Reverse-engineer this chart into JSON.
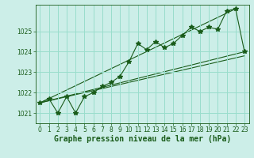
{
  "xlabel": "Graphe pression niveau de la mer (hPa)",
  "background_color": "#cceee8",
  "grid_color": "#99ddcc",
  "line_color": "#1a5c1a",
  "hours": [
    0,
    1,
    2,
    3,
    4,
    5,
    6,
    7,
    8,
    9,
    10,
    11,
    12,
    13,
    14,
    15,
    16,
    17,
    18,
    19,
    20,
    21,
    22,
    23
  ],
  "pressure": [
    1021.5,
    1021.7,
    1021.0,
    1021.8,
    1021.0,
    1021.8,
    1022.0,
    1022.3,
    1022.5,
    1022.8,
    1023.5,
    1024.4,
    1024.1,
    1024.5,
    1024.2,
    1024.4,
    1024.8,
    1025.2,
    1025.0,
    1025.2,
    1025.1,
    1026.0,
    1026.1,
    1024.0
  ],
  "ylim": [
    1020.5,
    1026.3
  ],
  "yticks": [
    1021,
    1022,
    1023,
    1024,
    1025
  ],
  "xticks": [
    0,
    1,
    2,
    3,
    4,
    5,
    6,
    7,
    8,
    9,
    10,
    11,
    12,
    13,
    14,
    15,
    16,
    17,
    18,
    19,
    20,
    21,
    22,
    23
  ],
  "tick_fontsize": 5.5,
  "xlabel_fontsize": 7,
  "marker": "*",
  "marker_size": 4,
  "trend1_x": [
    0,
    23
  ],
  "trend1_y": [
    1021.5,
    1024.0
  ],
  "trend2_x": [
    0,
    23
  ],
  "trend2_y": [
    1021.5,
    1023.8
  ],
  "trend3_x": [
    0,
    22
  ],
  "trend3_y": [
    1021.5,
    1026.1
  ]
}
